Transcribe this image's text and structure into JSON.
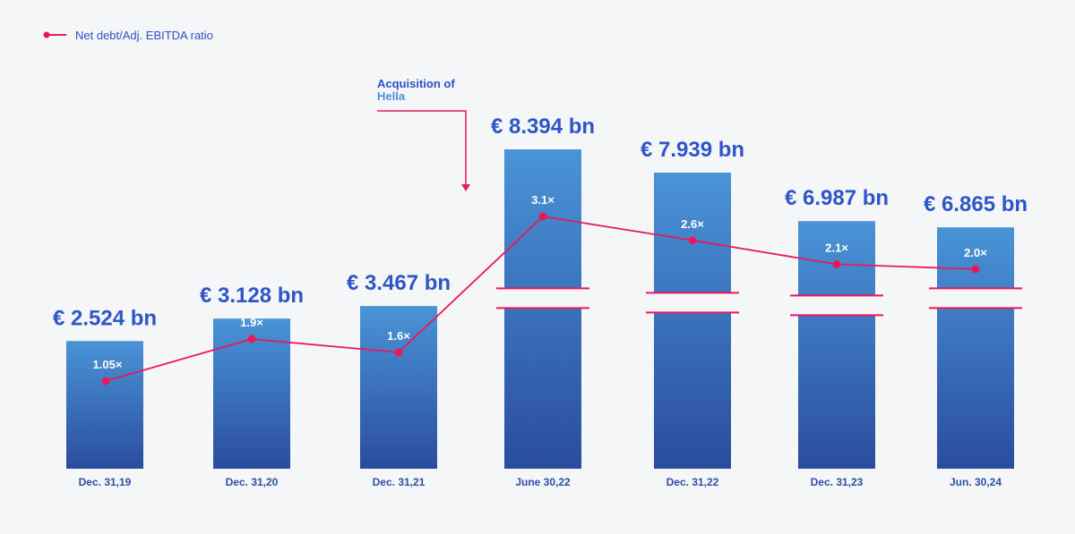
{
  "legend": {
    "label": "Net debt/Adj. EBITDA ratio"
  },
  "annotation": {
    "line1": "Acquisition of",
    "line2": "Hella"
  },
  "colors": {
    "bar_top": "#4a94d6",
    "bar_bottom": "#2a4d9e",
    "line": "#e8195a",
    "value_label": "#2d56c8",
    "x_label": "#2d4fa8"
  },
  "chart_data": {
    "type": "bar",
    "categories": [
      "Dec. 31,19",
      "Dec. 31,20",
      "Dec. 31,21",
      "June 30,22",
      "Dec. 31,22",
      "Dec. 31,23",
      "Jun. 30,24"
    ],
    "series": [
      {
        "name": "Net debt",
        "values": [
          2.524,
          3.128,
          3.467,
          8.394,
          7.939,
          6.987,
          6.865
        ],
        "labels": [
          "€ 2.524 bn",
          "€ 3.128 bn",
          "€ 3.467 bn",
          "€ 8.394 bn",
          "€ 7.939 bn",
          "€ 6.987 bn",
          "€ 6.865 bn"
        ],
        "axis_break": [
          false,
          false,
          false,
          true,
          true,
          true,
          true
        ]
      },
      {
        "name": "Net debt/Adj. EBITDA ratio",
        "type": "line",
        "values": [
          1.05,
          1.9,
          1.6,
          3.1,
          2.6,
          2.1,
          2.0
        ],
        "labels": [
          "1.05×",
          "1.9×",
          "1.6×",
          "3.1×",
          "2.6×",
          "2.1×",
          "2.0×"
        ]
      }
    ],
    "legend_position": "top-left",
    "grid": false
  }
}
